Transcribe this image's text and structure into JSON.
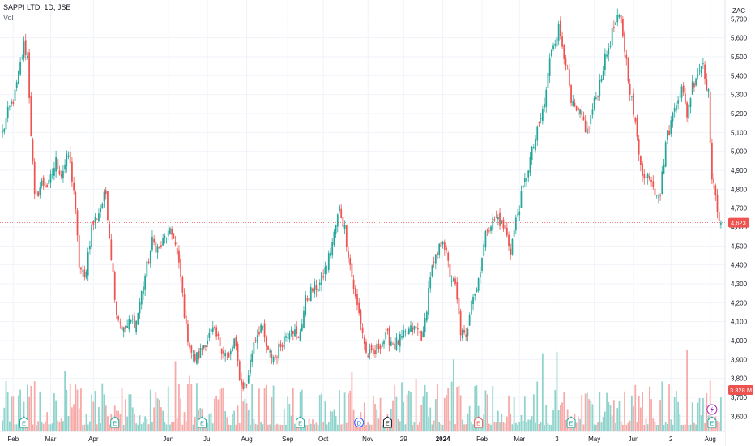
{
  "header": {
    "symbol_line": "SAPPI LTD, 1D, JSE",
    "volume_label": "Vol",
    "currency": "ZAC"
  },
  "colors": {
    "up": "#26a69a",
    "down": "#ef5350",
    "up_vol": "#8fd3cc",
    "down_vol": "#f7a9a7",
    "grid": "#f0f3fa",
    "price_line": "#ef5350"
  },
  "chart_data": {
    "type": "candlestick",
    "title": "SAPPI LTD, 1D, JSE",
    "ylabel": "ZAC",
    "ylim": [
      3520,
      5800
    ],
    "y_ticks": [
      3600,
      3700,
      3800,
      3900,
      4000,
      4100,
      4200,
      4300,
      4400,
      4500,
      4600,
      4700,
      4800,
      4900,
      5000,
      5100,
      5200,
      5300,
      5400,
      5500,
      5600,
      5700
    ],
    "y_tick_labels": [
      "3,600",
      "3,700",
      "3,800",
      "3,900",
      "4,000",
      "4,100",
      "4,200",
      "4,300",
      "4,400",
      "4,500",
      "4,600",
      "4,700",
      "4,800",
      "4,900",
      "5,000",
      "5,100",
      "5,200",
      "5,300",
      "5,400",
      "5,500",
      "5,600",
      "5,700"
    ],
    "x_tick_labels": [
      {
        "label": "Feb",
        "bar": 6
      },
      {
        "label": "Mar",
        "bar": 27
      },
      {
        "label": "Apr",
        "bar": 51
      },
      {
        "label": "Jun",
        "bar": 93
      },
      {
        "label": "Jul",
        "bar": 115
      },
      {
        "label": "Aug",
        "bar": 137
      },
      {
        "label": "Sep",
        "bar": 160
      },
      {
        "label": "Oct",
        "bar": 180
      },
      {
        "label": "Nov",
        "bar": 205
      },
      {
        "label": "29",
        "bar": 225
      },
      {
        "label": "2024",
        "bar": 247
      },
      {
        "label": "Feb",
        "bar": 269
      },
      {
        "label": "Mar",
        "bar": 290
      },
      {
        "label": "3",
        "bar": 311
      },
      {
        "label": "May",
        "bar": 332
      },
      {
        "label": "Jun",
        "bar": 354
      },
      {
        "label": "2",
        "bar": 375
      },
      {
        "label": "Aug",
        "bar": 397
      }
    ],
    "last_price": 4623,
    "last_price_label": "4,623",
    "volume_label": "3.328 M",
    "anchors": [
      [
        0,
        5100
      ],
      [
        3,
        5200
      ],
      [
        7,
        5300
      ],
      [
        12,
        5560
      ],
      [
        14,
        5500
      ],
      [
        16,
        5100
      ],
      [
        18,
        4750
      ],
      [
        22,
        4830
      ],
      [
        26,
        4820
      ],
      [
        30,
        4950
      ],
      [
        33,
        4880
      ],
      [
        37,
        4980
      ],
      [
        40,
        4800
      ],
      [
        43,
        4400
      ],
      [
        46,
        4320
      ],
      [
        50,
        4600
      ],
      [
        54,
        4680
      ],
      [
        58,
        4780
      ],
      [
        61,
        4450
      ],
      [
        64,
        4150
      ],
      [
        68,
        4050
      ],
      [
        72,
        4100
      ],
      [
        75,
        4100
      ],
      [
        79,
        4300
      ],
      [
        84,
        4520
      ],
      [
        88,
        4480
      ],
      [
        92,
        4560
      ],
      [
        96,
        4560
      ],
      [
        100,
        4330
      ],
      [
        103,
        4060
      ],
      [
        107,
        3900
      ],
      [
        110,
        3920
      ],
      [
        114,
        4000
      ],
      [
        118,
        4050
      ],
      [
        121,
        4000
      ],
      [
        124,
        3950
      ],
      [
        127,
        3900
      ],
      [
        130,
        4000
      ],
      [
        134,
        3760
      ],
      [
        137,
        3770
      ],
      [
        141,
        4000
      ],
      [
        145,
        4080
      ],
      [
        149,
        3930
      ],
      [
        153,
        3910
      ],
      [
        157,
        4000
      ],
      [
        162,
        4080
      ],
      [
        166,
        4000
      ],
      [
        170,
        4210
      ],
      [
        174,
        4270
      ],
      [
        178,
        4300
      ],
      [
        182,
        4400
      ],
      [
        186,
        4560
      ],
      [
        189,
        4700
      ],
      [
        192,
        4590
      ],
      [
        195,
        4400
      ],
      [
        198,
        4220
      ],
      [
        201,
        4100
      ],
      [
        204,
        3930
      ],
      [
        208,
        3920
      ],
      [
        212,
        3990
      ],
      [
        216,
        4020
      ],
      [
        220,
        3980
      ],
      [
        224,
        4010
      ],
      [
        228,
        4050
      ],
      [
        232,
        4060
      ],
      [
        236,
        4020
      ],
      [
        240,
        4350
      ],
      [
        244,
        4450
      ],
      [
        247,
        4550
      ],
      [
        251,
        4350
      ],
      [
        254,
        4280
      ],
      [
        257,
        4050
      ],
      [
        260,
        4000
      ],
      [
        263,
        4240
      ],
      [
        266,
        4270
      ],
      [
        269,
        4450
      ],
      [
        272,
        4600
      ],
      [
        275,
        4630
      ],
      [
        278,
        4650
      ],
      [
        282,
        4580
      ],
      [
        285,
        4480
      ],
      [
        288,
        4630
      ],
      [
        292,
        4800
      ],
      [
        296,
        4960
      ],
      [
        300,
        5100
      ],
      [
        304,
        5250
      ],
      [
        308,
        5550
      ],
      [
        312,
        5650
      ],
      [
        316,
        5480
      ],
      [
        319,
        5250
      ],
      [
        322,
        5200
      ],
      [
        325,
        5180
      ],
      [
        328,
        5100
      ],
      [
        331,
        5220
      ],
      [
        334,
        5320
      ],
      [
        337,
        5450
      ],
      [
        340,
        5550
      ],
      [
        343,
        5660
      ],
      [
        346,
        5700
      ],
      [
        348,
        5620
      ],
      [
        351,
        5400
      ],
      [
        354,
        5200
      ],
      [
        357,
        5000
      ],
      [
        360,
        4850
      ],
      [
        363,
        4880
      ],
      [
        366,
        4800
      ],
      [
        369,
        4780
      ],
      [
        372,
        5050
      ],
      [
        375,
        5150
      ],
      [
        378,
        5280
      ],
      [
        381,
        5330
      ],
      [
        384,
        5200
      ],
      [
        387,
        5350
      ],
      [
        390,
        5420
      ],
      [
        393,
        5470
      ],
      [
        396,
        5300
      ],
      [
        398,
        4850
      ],
      [
        401,
        4700
      ],
      [
        403,
        4623
      ]
    ]
  },
  "markers": [
    {
      "bar": 12,
      "label": "E",
      "kind": "earnings-up"
    },
    {
      "bar": 63,
      "label": "E",
      "kind": "earnings-up"
    },
    {
      "bar": 112,
      "label": "E",
      "kind": "earnings-up"
    },
    {
      "bar": 167,
      "label": "E",
      "kind": "earnings-up"
    },
    {
      "bar": 200,
      "label": "D",
      "kind": "dividend"
    },
    {
      "bar": 216,
      "label": "E",
      "kind": "earnings-neutral"
    },
    {
      "bar": 267,
      "label": "E",
      "kind": "earnings-down"
    },
    {
      "bar": 319,
      "label": "E",
      "kind": "earnings-up"
    },
    {
      "bar": 398,
      "label": "E",
      "kind": "earnings-up"
    }
  ]
}
